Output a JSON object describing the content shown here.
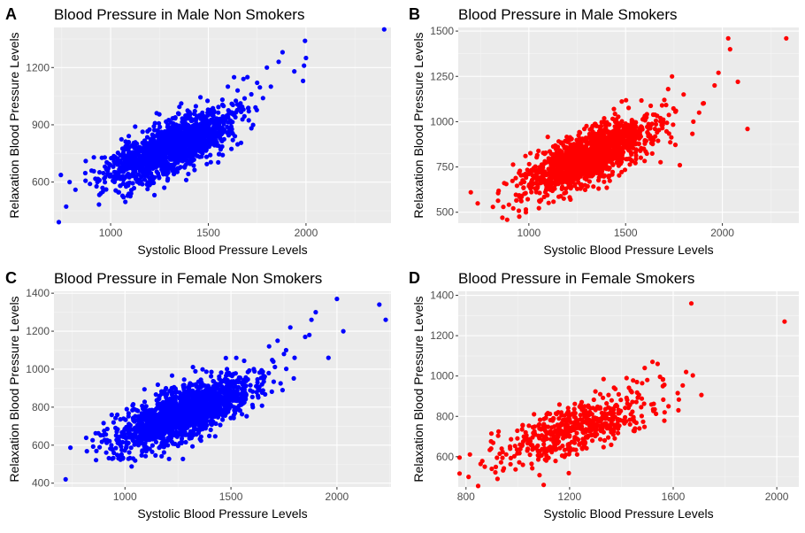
{
  "colors": {
    "panel_bg": "#ebebeb",
    "grid_major": "#ffffff",
    "grid_minor": "#f5f5f5",
    "tick_text": "#4d4d4d",
    "blue": "#0000ff",
    "red": "#ff0000"
  },
  "chart_data": [
    {
      "panel_letter": "A",
      "type": "scatter",
      "title": "Blood Pressure in Male Non Smokers",
      "xlabel": "Systolic Blood Pressure Levels",
      "ylabel": "Relaxation Blood Pressure Levels",
      "color": "#0000ff",
      "xlim": [
        710,
        2435
      ],
      "ylim": [
        385,
        1410
      ],
      "xticks": [
        1000,
        1500,
        2000
      ],
      "xtick_labels": [
        "1000",
        "1500",
        "2000"
      ],
      "yticks": [
        600,
        900,
        1200
      ],
      "ytick_labels": [
        "600",
        "900",
        "1200"
      ],
      "grid": true,
      "cloud": {
        "n": 1500,
        "x_mean": 1300,
        "x_sd": 160,
        "y_mean": 780,
        "y_sd": 95,
        "corr": 0.72,
        "seed": 11
      },
      "points": [
        [
          735,
          390
        ],
        [
          790,
          600
        ],
        [
          820,
          560
        ],
        [
          1995,
          1340
        ],
        [
          1990,
          1210
        ],
        [
          2000,
          1250
        ],
        [
          1985,
          1130
        ],
        [
          1940,
          1180
        ],
        [
          1880,
          1280
        ],
        [
          1860,
          1230
        ],
        [
          1820,
          1100
        ],
        [
          1800,
          1200
        ],
        [
          1780,
          1040
        ],
        [
          1750,
          1120
        ],
        [
          1720,
          1060
        ],
        [
          1700,
          1150
        ],
        [
          1680,
          980
        ],
        [
          1650,
          1080
        ],
        [
          1620,
          1010
        ],
        [
          1600,
          1100
        ],
        [
          2400,
          1400
        ]
      ]
    },
    {
      "panel_letter": "B",
      "type": "scatter",
      "title": "Blood Pressure in Male Smokers",
      "xlabel": "Systolic Blood Pressure Levels",
      "ylabel": "Relaxation Blood Pressure Levels",
      "color": "#ff0000",
      "xlim": [
        635,
        2395
      ],
      "ylim": [
        440,
        1520
      ],
      "xticks": [
        1000,
        1500,
        2000
      ],
      "xtick_labels": [
        "1000",
        "1500",
        "2000"
      ],
      "yticks": [
        500,
        750,
        1000,
        1250,
        1500
      ],
      "ytick_labels": [
        "500",
        "750",
        "1000",
        "1250",
        "1500"
      ],
      "grid": true,
      "cloud": {
        "n": 1500,
        "x_mean": 1300,
        "x_sd": 160,
        "y_mean": 800,
        "y_sd": 100,
        "corr": 0.72,
        "seed": 23
      },
      "points": [
        [
          700,
          610
        ],
        [
          2330,
          1460
        ],
        [
          2030,
          1460
        ],
        [
          2040,
          1400
        ],
        [
          2080,
          1220
        ],
        [
          2130,
          960
        ],
        [
          1980,
          1270
        ],
        [
          1960,
          1200
        ],
        [
          1900,
          1100
        ],
        [
          1880,
          1050
        ],
        [
          1850,
          1000
        ],
        [
          1800,
          1150
        ],
        [
          1780,
          760
        ],
        [
          1760,
          1060
        ],
        [
          1740,
          1250
        ],
        [
          1720,
          1180
        ],
        [
          1700,
          1120
        ],
        [
          1680,
          1020
        ]
      ]
    },
    {
      "panel_letter": "C",
      "type": "scatter",
      "title": "Blood Pressure in Female Non Smokers",
      "xlabel": "Systolic Blood Pressure Levels",
      "ylabel": "Relaxation Blood Pressure Levels",
      "color": "#0000ff",
      "xlim": [
        665,
        2255
      ],
      "ylim": [
        380,
        1410
      ],
      "xticks": [
        1000,
        1500,
        2000
      ],
      "xtick_labels": [
        "1000",
        "1500",
        "2000"
      ],
      "yticks": [
        400,
        600,
        800,
        1000,
        1200,
        1400
      ],
      "ytick_labels": [
        "400",
        "600",
        "800",
        "1000",
        "1200",
        "1400"
      ],
      "grid": true,
      "cloud": {
        "n": 1700,
        "x_mean": 1280,
        "x_sd": 160,
        "y_mean": 770,
        "y_sd": 95,
        "corr": 0.72,
        "seed": 37
      },
      "points": [
        [
          720,
          420
        ],
        [
          2230,
          1260
        ],
        [
          2200,
          1340
        ],
        [
          2000,
          1370
        ],
        [
          2030,
          1200
        ],
        [
          1960,
          1060
        ],
        [
          1900,
          1300
        ],
        [
          1880,
          1260
        ],
        [
          1870,
          1180
        ],
        [
          1850,
          1170
        ],
        [
          1800,
          1060
        ],
        [
          1780,
          1220
        ],
        [
          1760,
          1100
        ],
        [
          1750,
          1080
        ],
        [
          1720,
          1150
        ],
        [
          1700,
          1040
        ],
        [
          1680,
          1120
        ]
      ]
    },
    {
      "panel_letter": "D",
      "type": "scatter",
      "title": "Blood Pressure in Female Smokers",
      "xlabel": "Systolic Blood Pressure Levels",
      "ylabel": "Relaxation Blood Pressure Levels",
      "color": "#ff0000",
      "xlim": [
        770,
        2085
      ],
      "ylim": [
        450,
        1420
      ],
      "xticks": [
        800,
        1200,
        1600,
        2000
      ],
      "xtick_labels": [
        "800",
        "1200",
        "1600",
        "2000"
      ],
      "yticks": [
        600,
        800,
        1000,
        1200,
        1400
      ],
      "ytick_labels": [
        "600",
        "800",
        "1000",
        "1200",
        "1400"
      ],
      "grid": true,
      "cloud": {
        "n": 520,
        "x_mean": 1220,
        "x_sd": 150,
        "y_mean": 740,
        "y_sd": 85,
        "corr": 0.68,
        "seed": 53
      },
      "points": [
        [
          810,
          500
        ],
        [
          2030,
          1270
        ],
        [
          1670,
          1360
        ],
        [
          1650,
          1020
        ],
        [
          1620,
          830
        ],
        [
          1560,
          950
        ],
        [
          1540,
          1060
        ],
        [
          1520,
          1070
        ],
        [
          1500,
          980
        ],
        [
          1490,
          1040
        ],
        [
          1460,
          970
        ],
        [
          1440,
          920
        ],
        [
          1420,
          990
        ],
        [
          1100,
          460
        ]
      ]
    }
  ]
}
